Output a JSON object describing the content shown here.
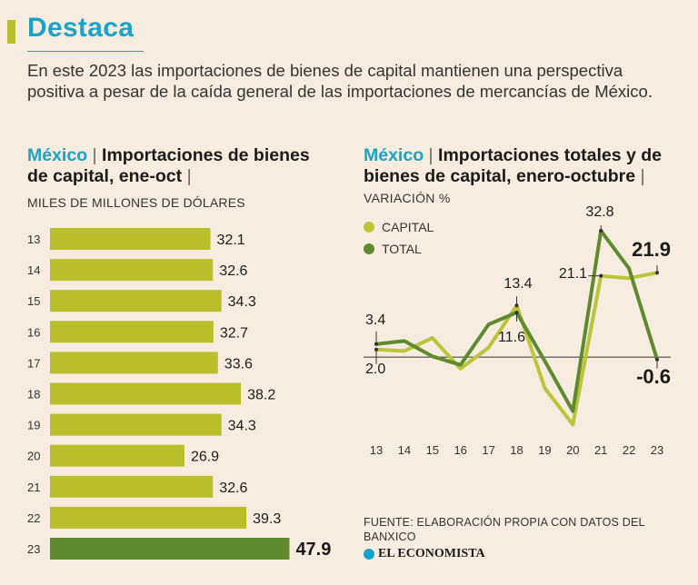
{
  "header": {
    "title": "Destaca",
    "intro": "En este 2023 las importaciones de bienes de capital mantienen una perspectiva positiva a pesar de la caída general de las importaciones de mercancías de México.",
    "colors": {
      "accent_bar": "#b8bf2a",
      "title": "#1aa3c8"
    }
  },
  "left_panel": {
    "country": "México",
    "separator": "|",
    "title": "Importaciones de bienes de capital, ene-oct",
    "title_end_separator": "|",
    "unit": "MILES DE MILLONES DE DÓLARES"
  },
  "right_panel": {
    "country": "México",
    "separator": "|",
    "title": "Importaciones totales y de bienes de capital, enero-octubre",
    "title_end_separator": "|",
    "unit": "VARIACIÓN %",
    "legend": [
      {
        "label": "CAPITAL",
        "color": "#bcc53a"
      },
      {
        "label": "TOTAL",
        "color": "#5f8a2f"
      }
    ]
  },
  "chart_data": [
    {
      "type": "bar",
      "orientation": "horizontal",
      "title": "México | Importaciones de bienes de capital, ene-oct",
      "ylabel": "MILES DE MILLONES DE DÓLARES",
      "categories": [
        "13",
        "14",
        "15",
        "16",
        "17",
        "18",
        "19",
        "20",
        "21",
        "22",
        "23"
      ],
      "values": [
        32.1,
        32.6,
        34.3,
        32.7,
        33.6,
        38.2,
        34.3,
        26.9,
        32.6,
        39.3,
        47.9
      ],
      "labels": [
        "32.1",
        "32.6",
        "34.3",
        "32.7",
        "33.6",
        "38.2",
        "34.3",
        "26.9",
        "32.6",
        "39.3",
        "47.9"
      ],
      "highlight_index": 10,
      "colors": {
        "bar": "#b8bf2a",
        "highlight": "#5f8a2f"
      }
    },
    {
      "type": "line",
      "title": "México | Importaciones totales y de bienes de capital, enero-octubre",
      "ylabel": "VARIACIÓN %",
      "categories": [
        "13",
        "14",
        "15",
        "16",
        "17",
        "18",
        "19",
        "20",
        "21",
        "22",
        "23"
      ],
      "ylim": [
        -20,
        38
      ],
      "series": [
        {
          "name": "CAPITAL",
          "color": "#bcc53a",
          "values": [
            2.0,
            1.6,
            5.0,
            -3.0,
            2.5,
            13.4,
            -8.0,
            -17.5,
            21.1,
            20.5,
            21.9
          ]
        },
        {
          "name": "TOTAL",
          "color": "#5f8a2f",
          "values": [
            3.4,
            4.2,
            0.2,
            -2.0,
            8.5,
            11.6,
            -1.0,
            -14.0,
            32.8,
            23.0,
            -0.6
          ]
        }
      ],
      "annotations": [
        {
          "text": "3.4",
          "series": "TOTAL",
          "index": 0,
          "bold": false
        },
        {
          "text": "2.0",
          "series": "CAPITAL",
          "index": 0,
          "bold": false
        },
        {
          "text": "13.4",
          "series": "CAPITAL",
          "index": 5,
          "bold": false
        },
        {
          "text": "11.6",
          "series": "TOTAL",
          "index": 5,
          "bold": false
        },
        {
          "text": "32.8",
          "series": "TOTAL",
          "index": 8,
          "bold": false
        },
        {
          "text": "21.1",
          "series": "CAPITAL",
          "index": 8,
          "bold": false
        },
        {
          "text": "21.9",
          "series": "CAPITAL",
          "index": 10,
          "bold": true
        },
        {
          "text": "-0.6",
          "series": "TOTAL",
          "index": 10,
          "bold": true
        }
      ]
    }
  ],
  "footer": {
    "source": "FUENTE: ELABORACIÓN PROPIA CON DATOS DEL BANXICO",
    "logo_text": "EL ECONOMISTA"
  }
}
